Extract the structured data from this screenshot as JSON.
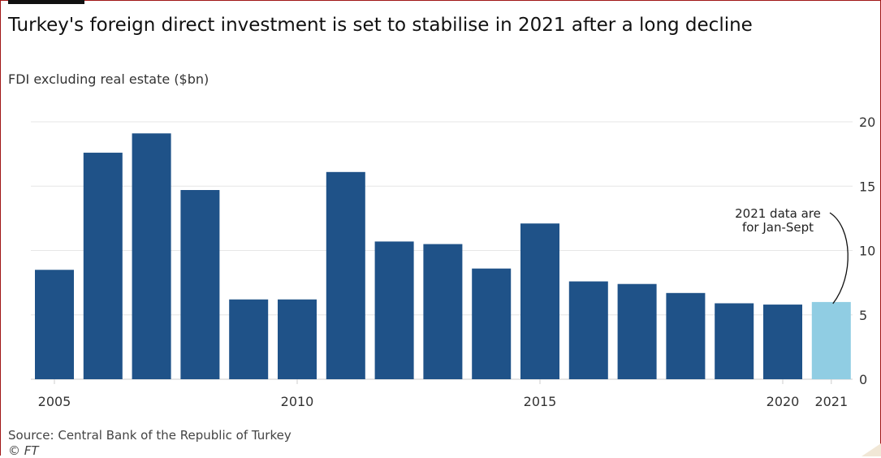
{
  "header": {
    "title": "Turkey's foreign direct investment is set to stabilise in 2021 after a long decline",
    "subtitle": "FDI excluding real estate ($bn)"
  },
  "footer": {
    "source": "Source: Central Bank of the Republic of Turkey",
    "credit": "© FT"
  },
  "colors": {
    "bar": "#1f5288",
    "highlight_bar": "#90cde3",
    "grid": "#e6e6e6",
    "axis": "#cccccc",
    "text": "#333333"
  },
  "chart_data": {
    "type": "bar",
    "title": "Turkey's foreign direct investment is set to stabilise in 2021 after a long decline",
    "subtitle": "FDI excluding real estate ($bn)",
    "categories": [
      "2005",
      "2006",
      "2007",
      "2008",
      "2009",
      "2010",
      "2011",
      "2012",
      "2013",
      "2014",
      "2015",
      "2016",
      "2017",
      "2018",
      "2019",
      "2020",
      "2021"
    ],
    "values": [
      8.5,
      17.6,
      19.1,
      14.7,
      6.2,
      6.2,
      16.1,
      10.7,
      10.5,
      8.6,
      12.1,
      7.6,
      7.4,
      6.7,
      5.9,
      5.8,
      6.0
    ],
    "highlight": [
      "2021"
    ],
    "x_tick_labels": [
      "2005",
      "2010",
      "2015",
      "2020",
      "2021"
    ],
    "y_ticks": [
      0,
      5,
      10,
      15,
      20
    ],
    "ylim": [
      0,
      20
    ],
    "grid": true,
    "y_axis_side": "right",
    "annotation": {
      "lines": [
        "2021 data are",
        "for Jan-Sept"
      ],
      "target": "2021"
    }
  }
}
